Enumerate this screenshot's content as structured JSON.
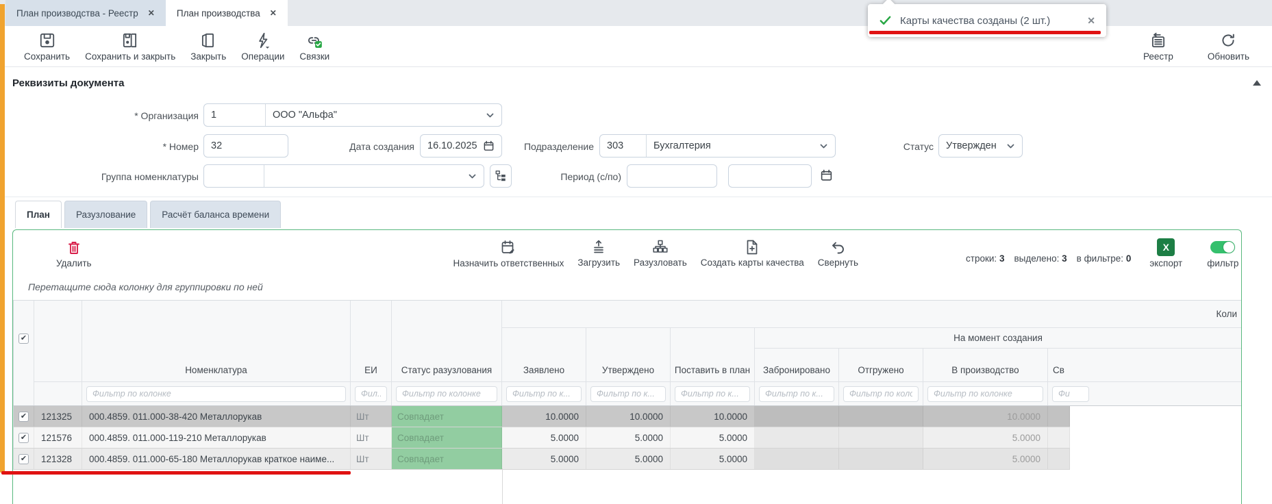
{
  "window_tabs": [
    {
      "label": "План производства - Реестр",
      "close": "✕"
    },
    {
      "label": "План производства",
      "close": "✕"
    }
  ],
  "toast": {
    "message": "Карты качества созданы (2 шт.)",
    "close": "✕"
  },
  "main_toolbar": {
    "save": "Сохранить",
    "save_close": "Сохранить и закрыть",
    "close": "Закрыть",
    "operations": "Операции",
    "links": "Связки",
    "registry": "Реестр",
    "refresh": "Обновить"
  },
  "document_section": {
    "title": "Реквизиты документа",
    "organization": {
      "label": "* Организация",
      "code": "1",
      "name": "ООО \"Альфа\""
    },
    "number": {
      "label": "* Номер",
      "value": "32"
    },
    "created": {
      "label": "Дата создания",
      "value": "16.10.2025"
    },
    "department": {
      "label": "Подразделение",
      "code": "303",
      "name": "Бухгалтерия"
    },
    "status": {
      "label": "Статус",
      "value": "Утвержден"
    },
    "nomenclature_group": {
      "label": "Группа номенклатуры",
      "code": "",
      "name": ""
    },
    "period": {
      "label": "Период (с/по)",
      "from": "",
      "to": ""
    }
  },
  "view_tabs": [
    {
      "label": "План"
    },
    {
      "label": "Разузлование"
    },
    {
      "label": "Расчёт баланса времени"
    }
  ],
  "grid_toolbar": {
    "delete": "Удалить",
    "assign": "Назначить ответственных",
    "upload": "Загрузить",
    "explode": "Разузловать",
    "create_cards": "Создать карты качества",
    "collapse": "Свернуть",
    "stats": {
      "rows_label": "строки:",
      "rows_value": "3",
      "selected_label": "выделено:",
      "selected_value": "3",
      "filtered_label": "в фильтре:",
      "filtered_value": "0"
    },
    "export_icon": "X",
    "export": "экспорт",
    "filter": "фильтр"
  },
  "grid": {
    "group_hint": "Перетащите сюда колонку для группировки по ней",
    "band_quantity": "Коли",
    "band_at_creation": "На момент создания",
    "columns": {
      "nomenclature": "Номенклатура",
      "unit": "ЕИ",
      "explode_status": "Статус разузлования",
      "declared": "Заявлено",
      "approved": "Утверждено",
      "to_plan": "Поставить в план",
      "reserved": "Забронировано",
      "shipped": "Отгружено",
      "in_production": "В производство",
      "clipped": "Св"
    },
    "filters": {
      "nomenclature": "Фильтр по колонке",
      "unit": "Фил...",
      "explode_status": "Фильтр по колонке",
      "declared": "Фильтр по к...",
      "approved": "Фильтр по к...",
      "to_plan": "Фильтр по к...",
      "reserved": "Фильтр по к...",
      "shipped": "Фильтр по колонке",
      "in_production": "Фильтр по колонке",
      "clipped": "Фи"
    },
    "rows": [
      {
        "id": "121325",
        "name": "000.4859. 011.000-38-420 Металлорукав",
        "unit": "Шт",
        "status": "Совпадает",
        "declared": "10.0000",
        "approved": "10.0000",
        "to_plan": "10.0000",
        "reserved": "",
        "shipped": "",
        "in_production": "10.0000",
        "clipped": ""
      },
      {
        "id": "121576",
        "name": "000.4859. 011.000-119-210 Металлорукав",
        "unit": "Шт",
        "status": "Совпадает",
        "declared": "5.0000",
        "approved": "5.0000",
        "to_plan": "5.0000",
        "reserved": "",
        "shipped": "",
        "in_production": "5.0000",
        "clipped": ""
      },
      {
        "id": "121328",
        "name": "000.4859. 011.000-65-180 Металлорукав краткое наиме...",
        "unit": "Шт",
        "status": "Совпадает",
        "declared": "5.0000",
        "approved": "5.0000",
        "to_plan": "5.0000",
        "reserved": "",
        "shipped": "",
        "in_production": "5.0000",
        "clipped": ""
      }
    ]
  },
  "colors": {
    "accent_orange": "#f0a32f",
    "panel_border_green": "#58b87e",
    "toast_check_green": "#27a744",
    "excel_green": "#1d7e45",
    "toggle_green": "#35c06d",
    "delete_red": "#d81f4a",
    "annotation_red": "#e01212",
    "selected_row_gray": "#c8c8c8",
    "match_cell_green": "#92cda1"
  }
}
